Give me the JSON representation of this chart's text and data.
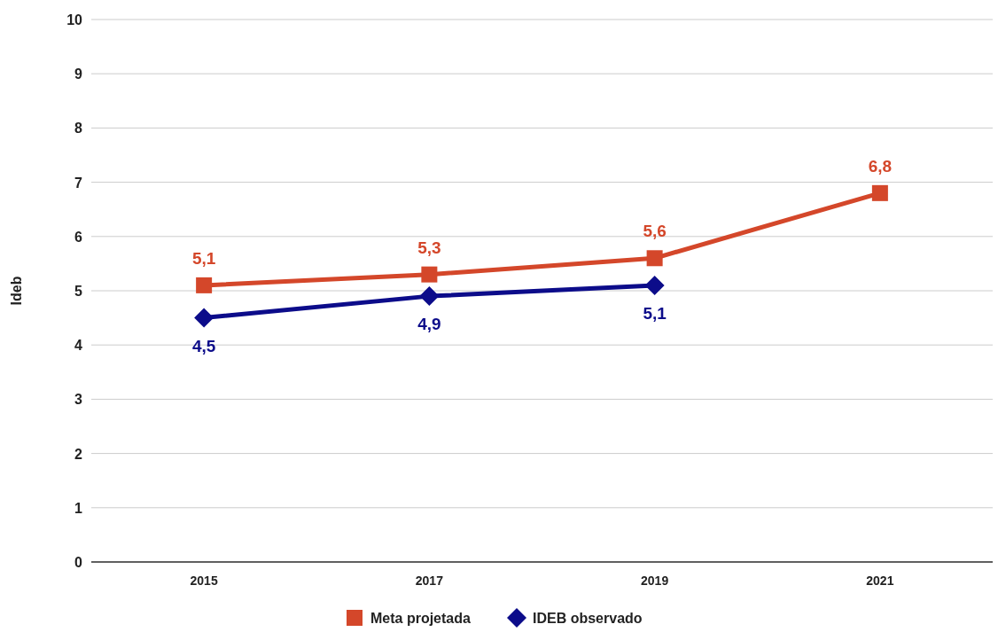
{
  "chart_data": {
    "type": "line",
    "ylabel": "Ideb",
    "categories": [
      "2015",
      "2017",
      "2019",
      "2021"
    ],
    "series": [
      {
        "name": "Meta projetada",
        "color": "#d4472a",
        "marker": "square",
        "values": [
          5.1,
          5.3,
          5.6,
          6.8
        ],
        "value_labels": [
          "5,1",
          "5,3",
          "5,6",
          "6,8"
        ]
      },
      {
        "name": "IDEB observado",
        "color": "#0c0c8a",
        "marker": "diamond",
        "values": [
          4.5,
          4.9,
          5.1,
          null
        ],
        "value_labels": [
          "4,5",
          "4,9",
          "5,1",
          null
        ]
      }
    ],
    "ylim": [
      0,
      10
    ],
    "yticks": [
      0,
      1,
      2,
      3,
      4,
      5,
      6,
      7,
      8,
      9,
      10
    ],
    "grid": "y",
    "legend": "bottom"
  }
}
